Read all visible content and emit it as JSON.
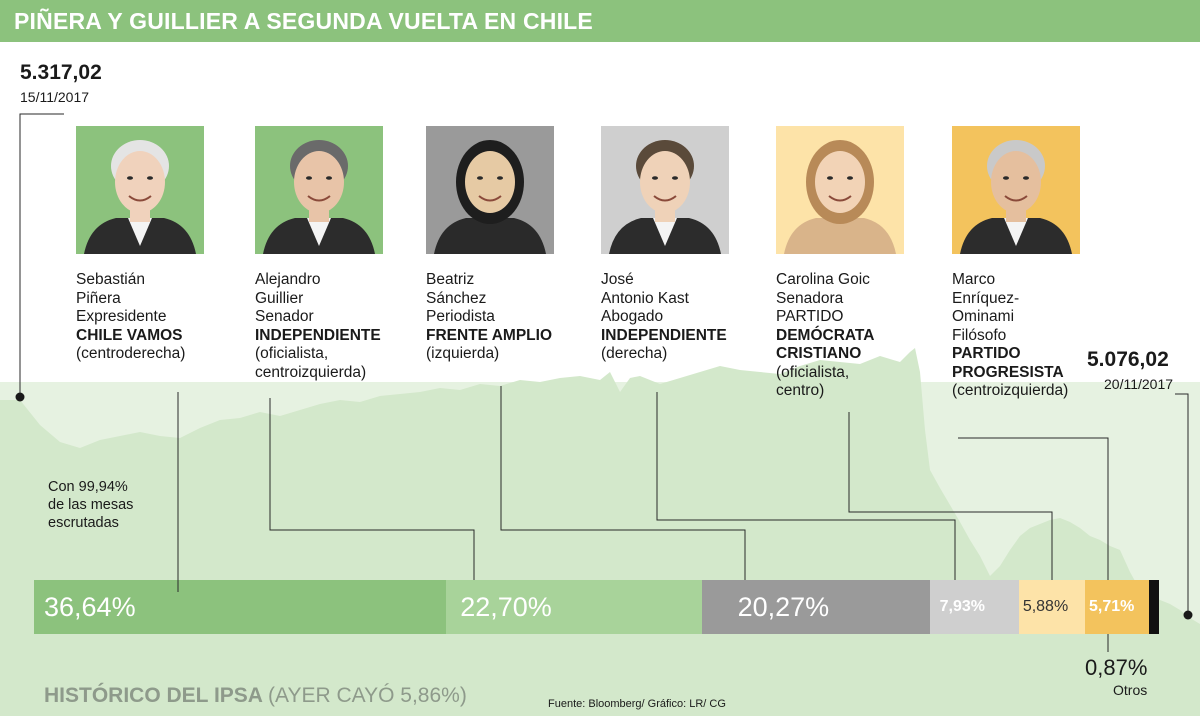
{
  "header": {
    "title": "PIÑERA Y GUILLIER A SEGUNDA VUELTA EN CHILE"
  },
  "ipsa": {
    "start": {
      "value": "5.317,02",
      "date": "15/11/2017"
    },
    "end": {
      "value": "5.076,02",
      "date": "20/11/2017"
    },
    "section_title": "HISTÓRICO DEL IPSA",
    "section_subtitle": "(AYER CAYÓ 5,86%)"
  },
  "note": [
    "Con 99,94%",
    "de las mesas",
    "escrutadas"
  ],
  "candidates": [
    {
      "lines": [
        "Sebastián",
        "Piñera",
        "Expresidente"
      ],
      "party": [
        "CHILE VAMOS"
      ],
      "extra": [
        "(centroderecha)"
      ],
      "photo_bg": "#8cc27d"
    },
    {
      "lines": [
        "Alejandro",
        "Guillier",
        "Senador"
      ],
      "party": [
        "INDEPENDIENTE"
      ],
      "extra": [
        "(oficialista,",
        "centroizquierda)"
      ],
      "photo_bg": "#8cc27d"
    },
    {
      "lines": [
        "Beatriz",
        "Sánchez",
        "Periodista"
      ],
      "party": [
        "FRENTE AMPLIO"
      ],
      "extra": [
        "(izquierda)"
      ],
      "photo_bg": "#9a9a9a"
    },
    {
      "lines": [
        "José",
        "Antonio Kast",
        "Abogado"
      ],
      "party": [
        "INDEPENDIENTE"
      ],
      "extra": [
        "(derecha)"
      ],
      "photo_bg": "#cfcfcf"
    },
    {
      "lines": [
        "Carolina Goic",
        "Senadora",
        "PARTIDO"
      ],
      "party": [
        "DEMÓCRATA",
        "CRISTIANO"
      ],
      "extra": [
        "(oficialista,",
        "centro)"
      ],
      "photo_bg": "#fde3a8"
    },
    {
      "lines": [
        "Marco",
        "Enríquez-",
        "Ominami",
        "Filósofo"
      ],
      "party": [
        "PARTIDO",
        "PROGRESISTA"
      ],
      "extra": [
        "(centroizquierda)"
      ],
      "photo_bg": "#f3c35d"
    }
  ],
  "otros": {
    "pct": "0,87%",
    "label": "Otros"
  },
  "source": "Fuente: Bloomberg/ Gráfico: LR/ CG",
  "chart_data": [
    {
      "type": "area",
      "x": [
        "15/11/2017",
        "20/11/2017"
      ],
      "values": [
        5317.02,
        5076.02
      ],
      "title": "HISTÓRICO DEL IPSA",
      "subtitle": "(AYER CAYÓ 5,86%)",
      "grid": false
    },
    {
      "type": "bar",
      "orientation": "horizontal-stacked",
      "categories": [
        "Sebastián Piñera",
        "Alejandro Guillier",
        "Beatriz Sánchez",
        "José Antonio Kast",
        "Carolina Goic",
        "Marco Enríquez-Ominami",
        "Otros"
      ],
      "values": [
        36.64,
        22.7,
        20.27,
        7.93,
        5.88,
        5.71,
        0.87
      ],
      "labels": [
        "36,64%",
        "22,70%",
        "20,27%",
        "7,93%",
        "5,88%",
        "5,71%",
        "0,87%"
      ],
      "colors": [
        "#8cc27d",
        "#a8d39a",
        "#9a9a9a",
        "#cfcfcf",
        "#fde3a8",
        "#f3c35d",
        "#111111"
      ],
      "label_colors": [
        "#ffffff",
        "#ffffff",
        "#ffffff",
        "#ffffff",
        "#333333",
        "#ffffff",
        "#111111"
      ]
    }
  ]
}
